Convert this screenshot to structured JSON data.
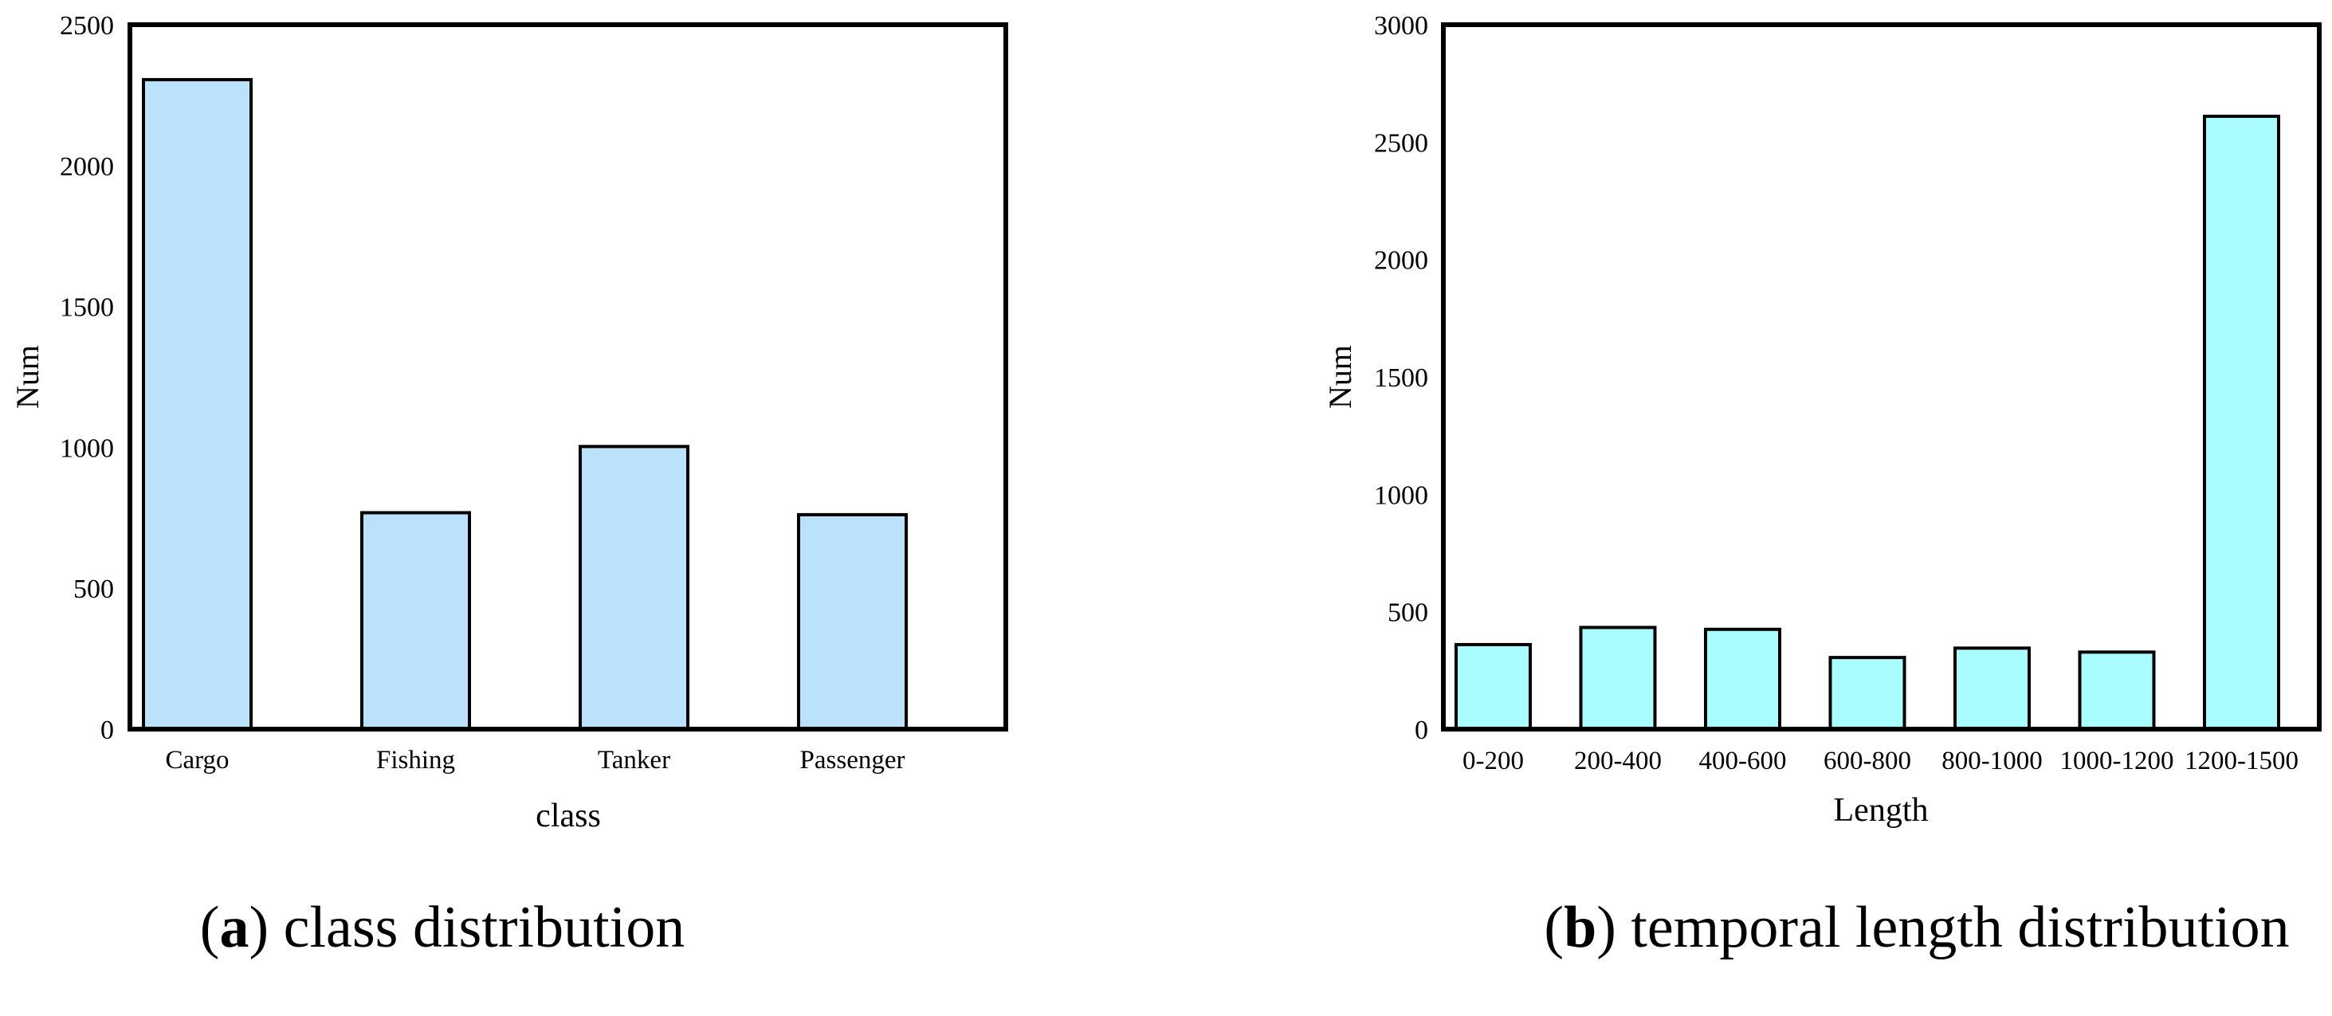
{
  "chart_data": [
    {
      "type": "bar",
      "title": "",
      "xlabel": "class",
      "ylabel": "Num",
      "ylim": [
        0,
        2500
      ],
      "yticks": [
        0,
        500,
        1000,
        1500,
        2000,
        2500
      ],
      "categories": [
        "Cargo",
        "Fishing",
        "Tanker",
        "Passenger"
      ],
      "values": [
        2305,
        768,
        1003,
        761
      ],
      "bar_color": "#bae3fb",
      "caption_letter": "a",
      "caption_text": "class distribution"
    },
    {
      "type": "bar",
      "title": "",
      "xlabel": "Length",
      "ylabel": "Num",
      "ylim": [
        0,
        3000
      ],
      "yticks": [
        0,
        500,
        1000,
        1500,
        2000,
        2500,
        3000
      ],
      "categories": [
        "0-200",
        "200-400",
        "400-600",
        "600-800",
        "800-1000",
        "1000-1200",
        "1200-1500"
      ],
      "values": [
        360,
        433,
        425,
        305,
        345,
        328,
        2610
      ],
      "bar_color": "#aafdfe",
      "caption_letter": "b",
      "caption_text": "temporal length distribution"
    }
  ]
}
